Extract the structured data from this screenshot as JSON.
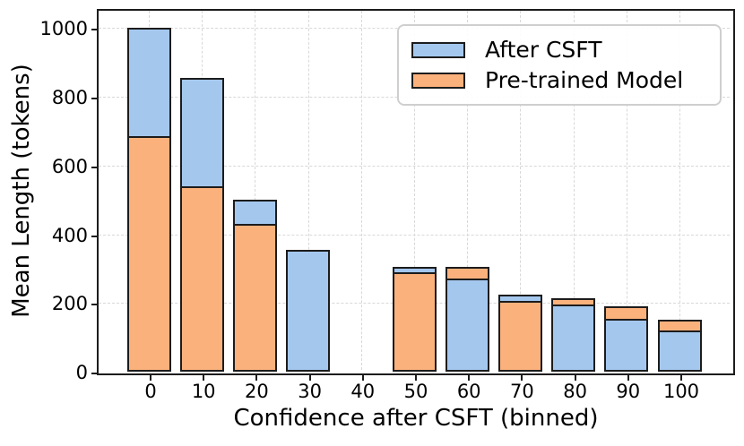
{
  "chart_data": {
    "type": "bar",
    "bar_mode": "overlap-same-x-shorter-in-front",
    "title": "",
    "xlabel": "Confidence after CSFT (binned)",
    "ylabel": "Mean Length (tokens)",
    "categories": [
      "0",
      "10",
      "20",
      "30",
      "40",
      "50",
      "60",
      "70",
      "80",
      "90",
      "100"
    ],
    "series": [
      {
        "name": "After CSFT",
        "color": "#a4c7ee",
        "edge_color": "#1c1c1c",
        "values": [
          1000,
          855,
          500,
          355,
          null,
          305,
          270,
          225,
          195,
          155,
          120
        ]
      },
      {
        "name": "Pre-trained Model",
        "color": "#fbb17c",
        "edge_color": "#1c1c1c",
        "values": [
          685,
          540,
          430,
          null,
          null,
          290,
          305,
          205,
          215,
          190,
          150
        ]
      }
    ],
    "yticks": [
      0,
      200,
      400,
      600,
      800,
      1000
    ],
    "ylim": [
      0,
      1056
    ],
    "grid": true,
    "grid_style": "dashed",
    "grid_color": "#d8d8d8",
    "background": "#ffffff",
    "legend_position": "upper-right"
  }
}
